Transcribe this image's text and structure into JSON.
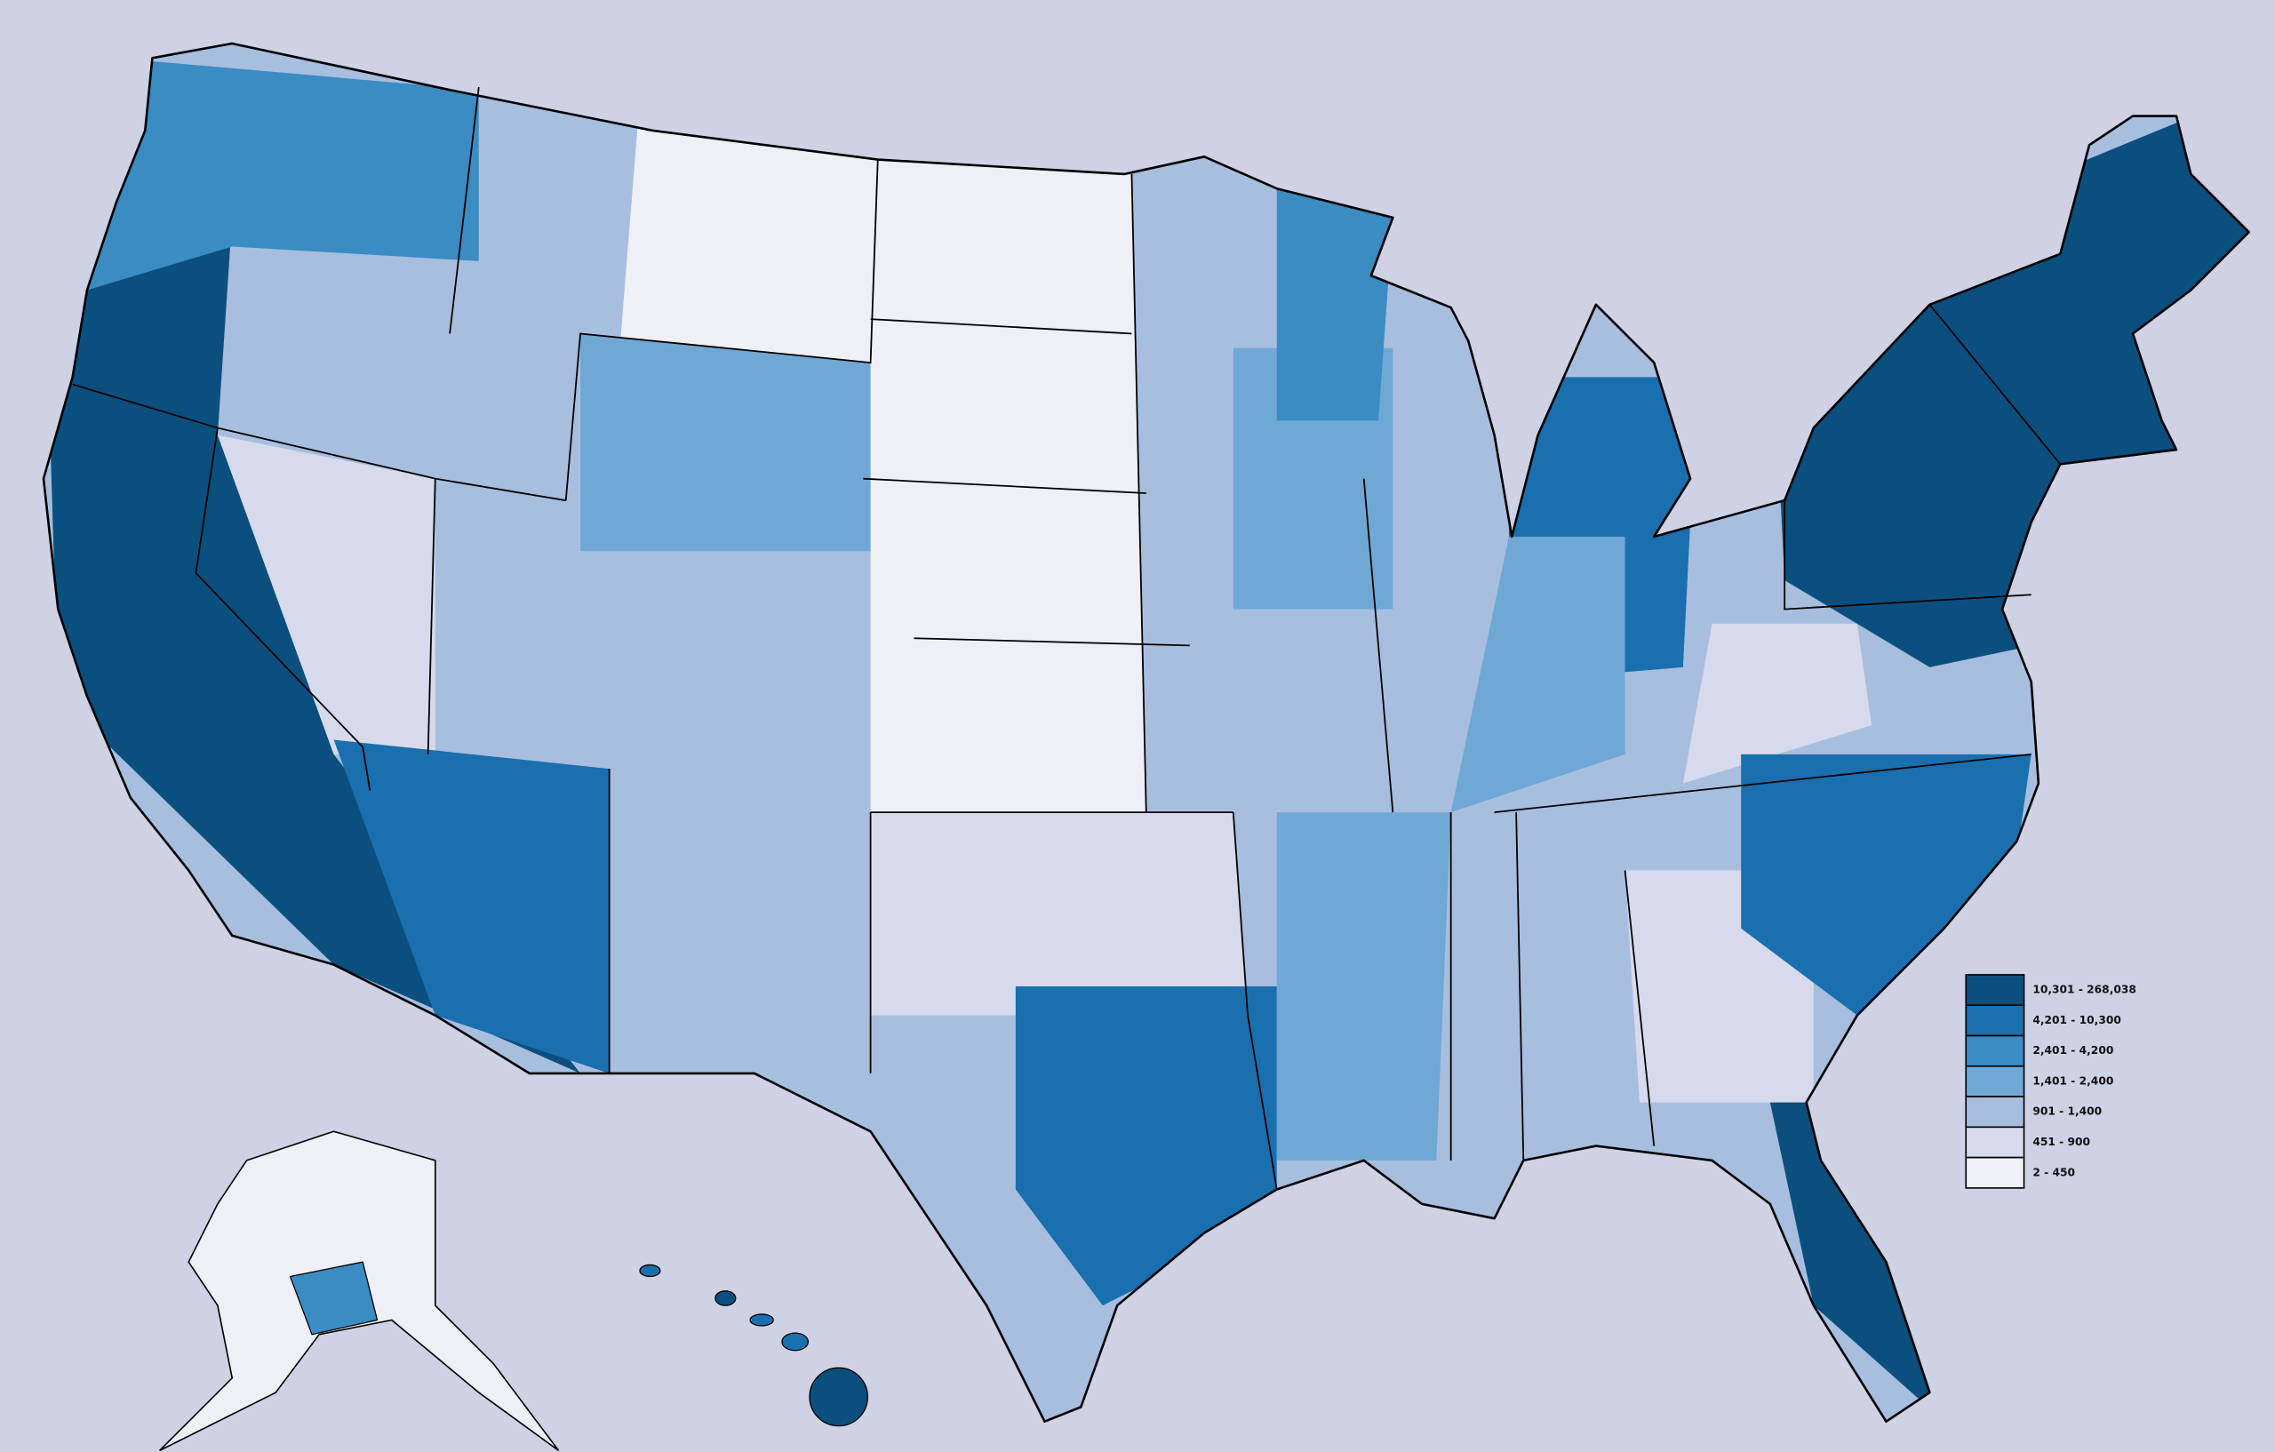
{
  "legend": {
    "items": [
      {
        "label": "10,301 - 268,038",
        "color": "#0b4f7f"
      },
      {
        "label": "4,201 - 10,300",
        "color": "#1a6fae"
      },
      {
        "label": "2,401 - 4,200",
        "color": "#3a8cc2"
      },
      {
        "label": "1,401 - 2,400",
        "color": "#6fa8d4"
      },
      {
        "label": "901 - 1,400",
        "color": "#a8bedf"
      },
      {
        "label": "451 - 900",
        "color": "#d7d9ec"
      },
      {
        "label": "2 - 450",
        "color": "#eeeff7"
      }
    ]
  }
}
